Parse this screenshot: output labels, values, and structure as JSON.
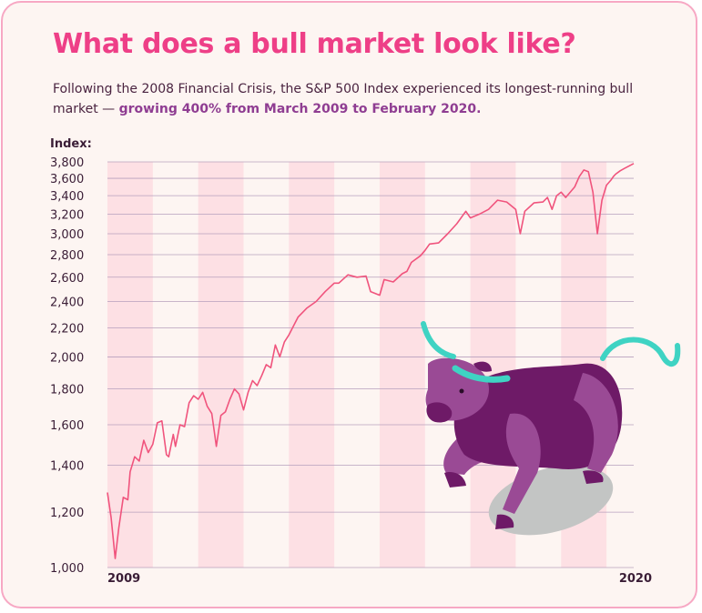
{
  "title": "What does a bull market look like?",
  "subtitle_plain": "Following the 2008 Financial Crisis, the S&P 500 Index experienced its longest-running bull market — ",
  "subtitle_emphasis": "growing 400% from March 2009 to February 2020.",
  "colors": {
    "title": "#ee3f87",
    "emphasis": "#8f3d92",
    "line": "#f0547d",
    "band": "#fde0e4",
    "grid": "#b7a0bd",
    "bull_body": "#6e1a67",
    "bull_light": "#9a4a95",
    "horn": "#3fd3c3"
  },
  "illustration": "bull-icon",
  "chart_data": {
    "type": "line",
    "title": "What does a bull market look like?",
    "ylabel": "Index:",
    "xlabel": "",
    "x_tick_labels": [
      "2009",
      "2020"
    ],
    "y_ticks": [
      1000,
      1200,
      1400,
      1600,
      1800,
      2000,
      2200,
      2400,
      2600,
      2800,
      3000,
      3200,
      3400,
      3600,
      3800
    ],
    "y_tick_labels": [
      "1,000",
      "1,200",
      "1,400",
      "1,600",
      "1,800",
      "2,000",
      "2,200",
      "2,400",
      "2,600",
      "2,800",
      "3,000",
      "3,200",
      "3,400",
      "3,600",
      "3,800"
    ],
    "ylim": [
      1000,
      3800
    ],
    "xlim": [
      2009.0,
      2020.6
    ],
    "y_scale": "log",
    "grid": true,
    "alternating_year_bands": true,
    "series": [
      {
        "x": [
          2009.0,
          2009.08,
          2009.17,
          2009.25,
          2009.35,
          2009.45,
          2009.5,
          2009.6,
          2009.7,
          2009.8,
          2009.9,
          2010.0,
          2010.1,
          2010.2,
          2010.3,
          2010.35,
          2010.45,
          2010.5,
          2010.6,
          2010.7,
          2010.8,
          2010.9,
          2011.0,
          2011.1,
          2011.2,
          2011.3,
          2011.4,
          2011.5,
          2011.6,
          2011.7,
          2011.8,
          2011.9,
          2012.0,
          2012.1,
          2012.2,
          2012.3,
          2012.4,
          2012.5,
          2012.6,
          2012.7,
          2012.8,
          2012.9,
          2013.0,
          2013.2,
          2013.4,
          2013.6,
          2013.8,
          2014.0,
          2014.1,
          2014.3,
          2014.5,
          2014.7,
          2014.8,
          2015.0,
          2015.1,
          2015.3,
          2015.5,
          2015.6,
          2015.7,
          2015.9,
          2016.0,
          2016.1,
          2016.3,
          2016.5,
          2016.6,
          2016.7,
          2016.9,
          2017.0,
          2017.2,
          2017.4,
          2017.6,
          2017.8,
          2018.0,
          2018.1,
          2018.2,
          2018.4,
          2018.6,
          2018.7,
          2018.8,
          2018.9,
          2019.0,
          2019.1,
          2019.3,
          2019.4,
          2019.5,
          2019.6,
          2019.7,
          2019.8,
          2019.9,
          2020.0,
          2020.1,
          2020.15,
          2020.2,
          2020.3,
          2020.4,
          2020.5,
          2020.6
        ],
        "values": [
          1280,
          1180,
          1030,
          1140,
          1260,
          1250,
          1370,
          1440,
          1420,
          1520,
          1460,
          1500,
          1610,
          1620,
          1450,
          1440,
          1550,
          1490,
          1600,
          1590,
          1720,
          1760,
          1740,
          1780,
          1700,
          1660,
          1490,
          1650,
          1670,
          1740,
          1800,
          1770,
          1680,
          1780,
          1850,
          1820,
          1880,
          1950,
          1930,
          2080,
          2000,
          2100,
          2150,
          2280,
          2350,
          2400,
          2480,
          2550,
          2550,
          2620,
          2600,
          2610,
          2480,
          2450,
          2580,
          2560,
          2630,
          2650,
          2730,
          2790,
          2840,
          2900,
          2910,
          3000,
          3050,
          3100,
          3230,
          3160,
          3200,
          3250,
          3350,
          3330,
          3250,
          3000,
          3230,
          3320,
          3330,
          3380,
          3250,
          3400,
          3440,
          3380,
          3500,
          3620,
          3700,
          3680,
          3440,
          3000,
          3350,
          3520,
          3580,
          3620,
          3650,
          3690,
          3720,
          3750,
          3780
        ]
      }
    ]
  }
}
